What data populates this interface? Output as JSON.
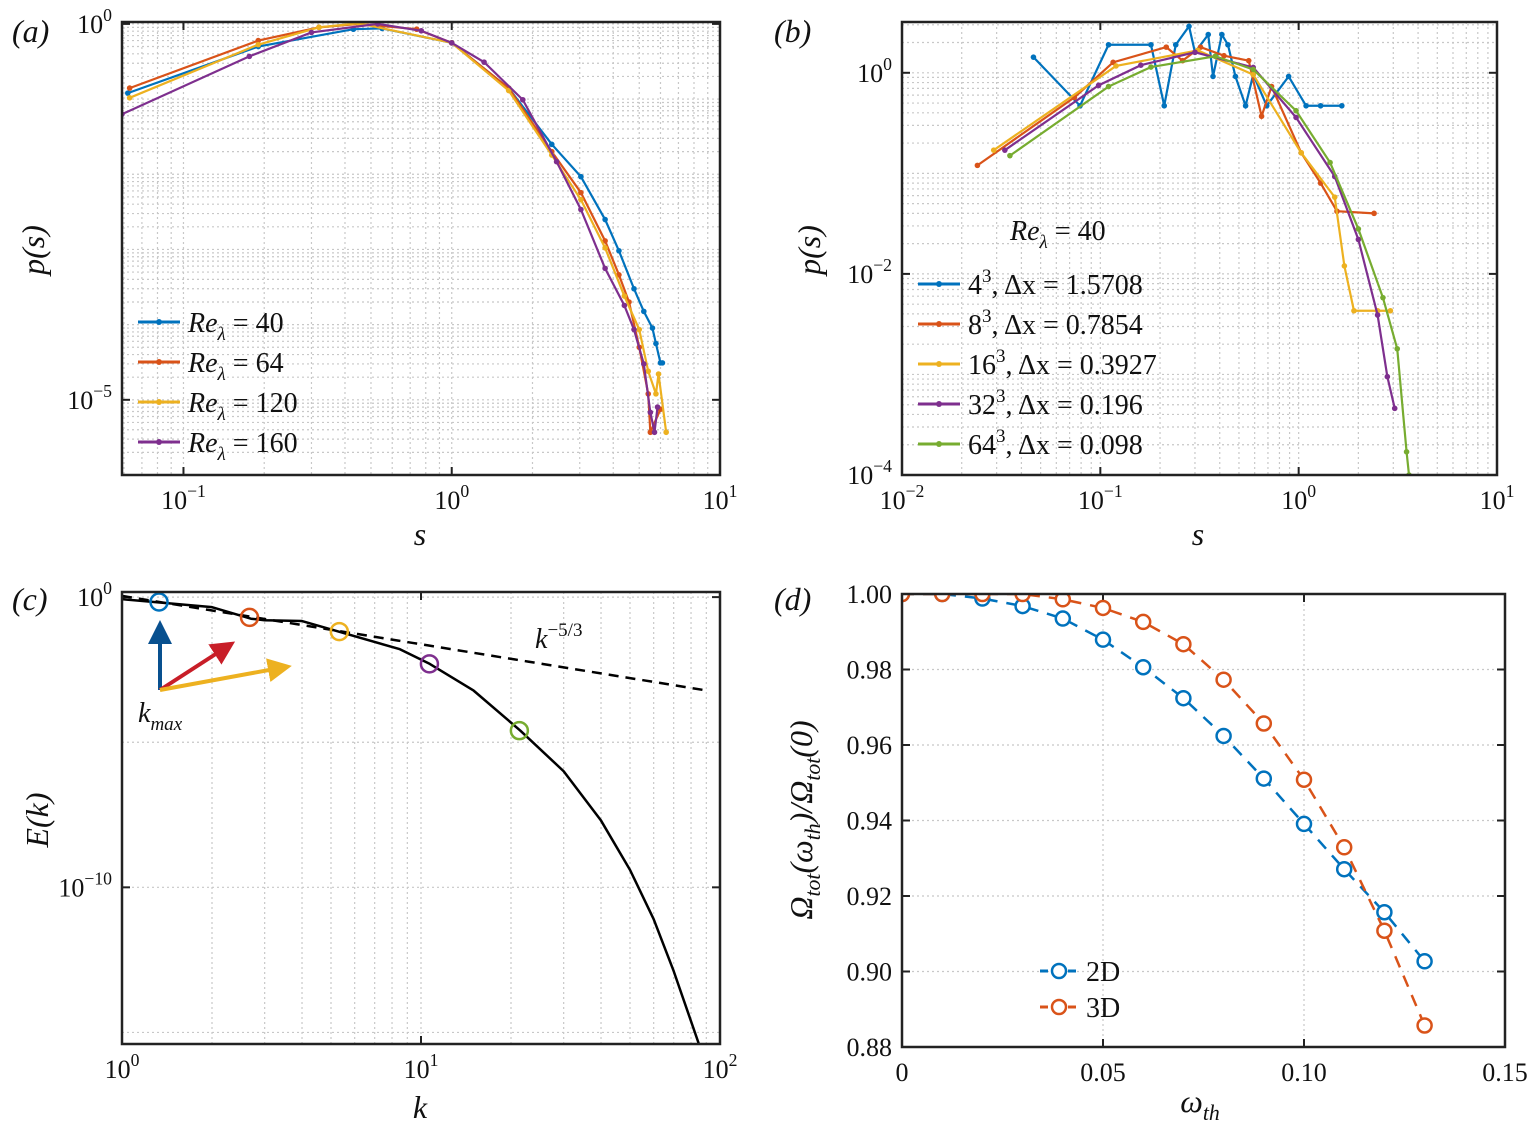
{
  "chart_data": [
    {
      "panel_label": "(a)",
      "type": "line",
      "xscale": "log",
      "yscale": "log",
      "xlabel": "s",
      "ylabel": "p(s)",
      "xlim": [
        0.059,
        10
      ],
      "ylim": [
        1e-06,
        1.06
      ],
      "xticks": [
        0.1,
        1,
        10
      ],
      "xtick_labels": [
        "10^{−1}",
        "10^{0}",
        "10^{1}"
      ],
      "yticks": [
        1e-05,
        1
      ],
      "ytick_labels": [
        "10^{−5}",
        "10^{0}"
      ],
      "grid": "major and minor, dotted",
      "legend_position": "bottom-left",
      "series": [
        {
          "name": "Re_{λ} = 40",
          "color": "#0072BD",
          "x": [
            0.062,
            0.19,
            0.43,
            0.55,
            1.0,
            1.63,
            2.36,
            3.03,
            3.73,
            4.2,
            4.78,
            5.2,
            5.6,
            5.77,
            6.0,
            6.1
          ],
          "y": [
            0.12,
            0.5,
            0.85,
            0.87,
            0.56,
            0.14,
            0.025,
            0.0093,
            0.0025,
            0.00096,
            0.0003,
            0.00015,
            9e-05,
            5.6e-05,
            3.1e-05,
            3.1e-05
          ]
        },
        {
          "name": "Re_{λ} = 64",
          "color": "#D95319",
          "x": [
            0.063,
            0.19,
            0.32,
            0.45,
            0.74,
            1.0,
            1.63,
            2.36,
            3.03,
            3.73,
            4.2,
            4.58,
            5.0,
            5.4,
            5.5,
            6.0
          ],
          "y": [
            0.14,
            0.6,
            0.9,
            1.0,
            0.85,
            0.56,
            0.14,
            0.02,
            0.0057,
            0.0013,
            0.00046,
            0.0002,
            5e-05,
            1.2e-05,
            3.7e-06,
            7.5e-06
          ]
        },
        {
          "name": "Re_{λ} = 120",
          "color": "#EDB120",
          "x": [
            0.063,
            0.19,
            0.32,
            0.45,
            1.0,
            1.63,
            2.36,
            3.03,
            3.73,
            4.4,
            5.0,
            5.4,
            5.77,
            5.9,
            6.3
          ],
          "y": [
            0.104,
            0.53,
            0.9,
            1.02,
            0.56,
            0.13,
            0.018,
            0.0046,
            0.00105,
            0.00024,
            8.6e-05,
            2.4e-05,
            1.2e-05,
            2.2e-05,
            3.7e-06
          ]
        },
        {
          "name": "Re_{λ} = 160",
          "color": "#7E2F8E",
          "x": [
            0.059,
            0.176,
            0.3,
            0.53,
            0.77,
            1.0,
            1.32,
            1.84,
            2.46,
            3.03,
            3.73,
            4.4,
            4.78,
            5.2,
            5.5,
            5.7,
            5.85
          ],
          "y": [
            0.063,
            0.37,
            0.77,
            1.0,
            0.81,
            0.56,
            0.31,
            0.098,
            0.0147,
            0.0034,
            0.00056,
            0.00018,
            8.6e-05,
            3e-05,
            6.8e-06,
            3.7e-06,
            8e-06
          ]
        }
      ]
    },
    {
      "panel_label": "(b)",
      "type": "line",
      "xscale": "log",
      "yscale": "log",
      "xlabel": "s",
      "ylabel": "p(s)",
      "xlim": [
        0.01,
        10
      ],
      "ylim": [
        0.0001,
        3.2
      ],
      "xticks": [
        0.01,
        0.1,
        1,
        10
      ],
      "xtick_labels": [
        "10^{−2}",
        "10^{−1}",
        "10^{0}",
        "10^{1}"
      ],
      "yticks": [
        0.0001,
        0.01,
        1
      ],
      "ytick_labels": [
        "10^{−4}",
        "10^{−2}",
        "10^{0}"
      ],
      "grid": "major and minor, dotted",
      "legend_position": "bottom-left",
      "annotation": "Re_{λ} = 40",
      "series": [
        {
          "name": "4^{3}, Δx = 1.5708",
          "color": "#0072BD",
          "x": [
            0.046,
            0.079,
            0.11,
            0.18,
            0.21,
            0.24,
            0.28,
            0.3,
            0.35,
            0.37,
            0.41,
            0.44,
            0.48,
            0.54,
            0.59,
            0.69,
            0.89,
            1.09,
            1.29,
            1.65
          ],
          "y": [
            1.43,
            0.47,
            1.9,
            1.9,
            0.47,
            1.9,
            2.9,
            1.6,
            2.4,
            0.92,
            2.4,
            1.9,
            0.92,
            0.47,
            0.96,
            0.47,
            0.92,
            0.47,
            0.47,
            0.47
          ]
        },
        {
          "name": "8^{3}, Δx = 0.7854",
          "color": "#D95319",
          "x": [
            0.024,
            0.074,
            0.116,
            0.215,
            0.26,
            0.32,
            0.42,
            0.56,
            0.65,
            0.73,
            1.03,
            1.29,
            1.56,
            2.4
          ],
          "y": [
            0.12,
            0.57,
            1.27,
            1.8,
            1.32,
            1.8,
            1.48,
            1.32,
            0.37,
            0.73,
            0.16,
            0.08,
            0.042,
            0.04
          ]
        },
        {
          "name": "16^{3}, Δx = 0.3927",
          "color": "#EDB120",
          "x": [
            0.029,
            0.12,
            0.31,
            0.59,
            1.03,
            1.52,
            1.7,
            1.9,
            2.5,
            2.9
          ],
          "y": [
            0.17,
            1.17,
            1.67,
            0.96,
            0.16,
            0.058,
            0.012,
            0.0043,
            0.0043,
            0.0043
          ]
        },
        {
          "name": "32^{3}, Δx = 0.196",
          "color": "#7E2F8E",
          "x": [
            0.033,
            0.098,
            0.16,
            0.3,
            0.59,
            0.97,
            1.52,
            2.0,
            2.5,
            2.8,
            3.05
          ],
          "y": [
            0.17,
            0.75,
            1.19,
            1.6,
            1.13,
            0.36,
            0.093,
            0.022,
            0.0039,
            0.00095,
            0.00046
          ]
        },
        {
          "name": "64^{3}, Δx = 0.098",
          "color": "#77AC30",
          "x": [
            0.035,
            0.11,
            0.18,
            0.38,
            0.59,
            0.97,
            1.44,
            2.0,
            2.66,
            3.14,
            3.5,
            3.6
          ],
          "y": [
            0.15,
            0.73,
            1.14,
            1.46,
            1.08,
            0.42,
            0.128,
            0.028,
            0.0058,
            0.0018,
            0.00017,
            0.0001
          ]
        }
      ]
    },
    {
      "panel_label": "(c)",
      "type": "line",
      "xscale": "log",
      "yscale": "log",
      "xlabel": "k",
      "ylabel": "E(k)",
      "xlim": [
        1,
        100
      ],
      "ylim": [
        4e-16,
        1.5
      ],
      "xticks": [
        1,
        10,
        100
      ],
      "xtick_labels": [
        "10^{0}",
        "10^{1}",
        "10^{2}"
      ],
      "yticks": [
        1e-10,
        1
      ],
      "ytick_labels": [
        "10^{−10}",
        "10^{0}"
      ],
      "grid": "major, dotted",
      "series": [
        {
          "color": "#000000",
          "style": "solid",
          "x": [
            1,
            2,
            2.7,
            3,
            4,
            5.3,
            8.5,
            10.7,
            15,
            21.5,
            30,
            40,
            50,
            60,
            70,
            85
          ],
          "y": [
            0.85,
            0.45,
            0.18,
            0.16,
            0.15,
            0.065,
            0.016,
            0.005,
            0.0006,
            2.5e-05,
            1e-06,
            2e-08,
            4e-10,
            8e-12,
            1.3e-13,
            4e-16
          ]
        }
      ],
      "reference_line": {
        "label": "k^{−5/3}",
        "style": "dashed",
        "color": "#000000",
        "coefficient": 1.1,
        "exponent": -1.6667,
        "x_range": [
          1,
          88
        ]
      },
      "markers": [
        {
          "k": 1.33,
          "E": 0.68,
          "color": "#0072BD"
        },
        {
          "k": 2.67,
          "E": 0.2,
          "color": "#D95319"
        },
        {
          "k": 5.33,
          "E": 0.065,
          "color": "#EDB120"
        },
        {
          "k": 10.67,
          "E": 0.005,
          "color": "#7E2F8E"
        },
        {
          "k": 21.33,
          "E": 2.5e-05,
          "color": "#77AC30"
        }
      ],
      "inset": {
        "label": "k_{max}",
        "arrow_colors": [
          "#08508F",
          "#C81E28",
          "#EDB120"
        ]
      }
    },
    {
      "panel_label": "(d)",
      "type": "line",
      "xscale": "linear",
      "yscale": "linear",
      "xlabel": "ω_{th}",
      "ylabel": "Ω_{tot}(ω_{th})/Ω_{tot}(0)",
      "xlim": [
        0,
        0.15
      ],
      "ylim": [
        0.88,
        1.0
      ],
      "xticks": [
        0,
        0.05,
        0.1,
        0.15
      ],
      "xtick_labels": [
        "0",
        "0.05",
        "0.10",
        "0.15"
      ],
      "yticks": [
        0.88,
        0.9,
        0.92,
        0.94,
        0.96,
        0.98,
        1.0
      ],
      "ytick_labels": [
        "0.88",
        "0.90",
        "0.92",
        "0.94",
        "0.96",
        "0.98",
        "1.00"
      ],
      "grid": "major, dotted",
      "legend_position": "bottom-left",
      "series": [
        {
          "name": "2D",
          "color": "#0072BD",
          "style": "dashed, open circles",
          "x": [
            0,
            0.01,
            0.02,
            0.03,
            0.04,
            0.05,
            0.06,
            0.07,
            0.08,
            0.09,
            0.1,
            0.11,
            0.12,
            0.13
          ],
          "y": [
            1.0,
            1.0,
            0.9988,
            0.9968,
            0.9935,
            0.9879,
            0.9806,
            0.9724,
            0.9624,
            0.9511,
            0.9391,
            0.9271,
            0.9157,
            0.9027
          ]
        },
        {
          "name": "3D",
          "color": "#D95319",
          "style": "dashed, open circles",
          "x": [
            0,
            0.01,
            0.02,
            0.03,
            0.04,
            0.05,
            0.06,
            0.07,
            0.08,
            0.09,
            0.1,
            0.11,
            0.12,
            0.13
          ],
          "y": [
            1.0,
            1.0,
            1.0,
            1.0,
            0.9986,
            0.9963,
            0.9926,
            0.9867,
            0.9773,
            0.9657,
            0.9508,
            0.9329,
            0.9108,
            0.8857
          ]
        }
      ]
    }
  ]
}
